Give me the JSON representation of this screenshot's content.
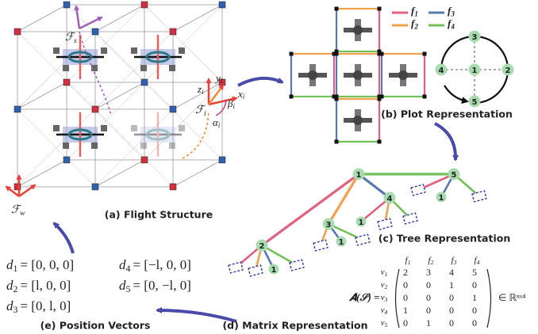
{
  "flight_structure": {
    "caption": "(a) Flight Structure",
    "frames": {
      "swarm": {
        "symbol": "ℱ",
        "sub": "s"
      },
      "drone": {
        "symbol": "ℱ",
        "sub": "i"
      },
      "world": {
        "symbol": "ℱ",
        "sub": "w"
      }
    },
    "axes": {
      "x": {
        "symbol": "x",
        "sub": "i"
      },
      "y": {
        "symbol": "y",
        "sub": "i"
      },
      "z": {
        "symbol": "z",
        "sub": "i"
      }
    },
    "angles": {
      "alpha": {
        "symbol": "α",
        "sub": "i"
      },
      "beta": {
        "symbol": "β",
        "sub": "i"
      }
    }
  },
  "plot": {
    "caption": "(b) Plot Representation",
    "legend": [
      {
        "symbol": "f",
        "sub": "1",
        "color": "#e0607e"
      },
      {
        "symbol": "f",
        "sub": "2",
        "color": "#f0a050"
      },
      {
        "symbol": "f",
        "sub": "3",
        "color": "#5878b0"
      },
      {
        "symbol": "f",
        "sub": "4",
        "color": "#72c05a"
      }
    ],
    "graph_nodes": [
      "1",
      "2",
      "3",
      "4",
      "5"
    ]
  },
  "tree": {
    "caption": "(c) Tree Representation",
    "nodes": [
      "1",
      "5",
      "4",
      "3",
      "2"
    ],
    "leaves": [
      "1",
      "1",
      "1",
      "1"
    ]
  },
  "matrix": {
    "caption": "(d) Matrix Representation",
    "lhs": "𝑨(𝒮) =",
    "columns": [
      {
        "symbol": "f",
        "sub": "1"
      },
      {
        "symbol": "f",
        "sub": "2"
      },
      {
        "symbol": "f",
        "sub": "3"
      },
      {
        "symbol": "f",
        "sub": "4"
      }
    ],
    "rows": [
      {
        "symbol": "v",
        "sub": "1"
      },
      {
        "symbol": "v",
        "sub": "2"
      },
      {
        "symbol": "v",
        "sub": "3"
      },
      {
        "symbol": "v",
        "sub": "4"
      },
      {
        "symbol": "v",
        "sub": "5"
      }
    ],
    "entries": [
      [
        2,
        3,
        4,
        5
      ],
      [
        0,
        0,
        1,
        0
      ],
      [
        0,
        0,
        0,
        1
      ],
      [
        1,
        0,
        0,
        0
      ],
      [
        0,
        1,
        0,
        0
      ]
    ],
    "rhs": "∈ ℝⁿˣ⁴"
  },
  "positions": {
    "caption": "(e) Position Vectors",
    "items": [
      {
        "symbol": "d",
        "sub": "1",
        "value": "= [0, 0, 0]"
      },
      {
        "symbol": "d",
        "sub": "4",
        "value": "= [−l, 0, 0]"
      },
      {
        "symbol": "d",
        "sub": "2",
        "value": "= [l, 0, 0]"
      },
      {
        "symbol": "d",
        "sub": "5",
        "value": "= [0, −l, 0]"
      },
      {
        "symbol": "d",
        "sub": "3",
        "value": "= [0, l, 0]"
      }
    ]
  }
}
